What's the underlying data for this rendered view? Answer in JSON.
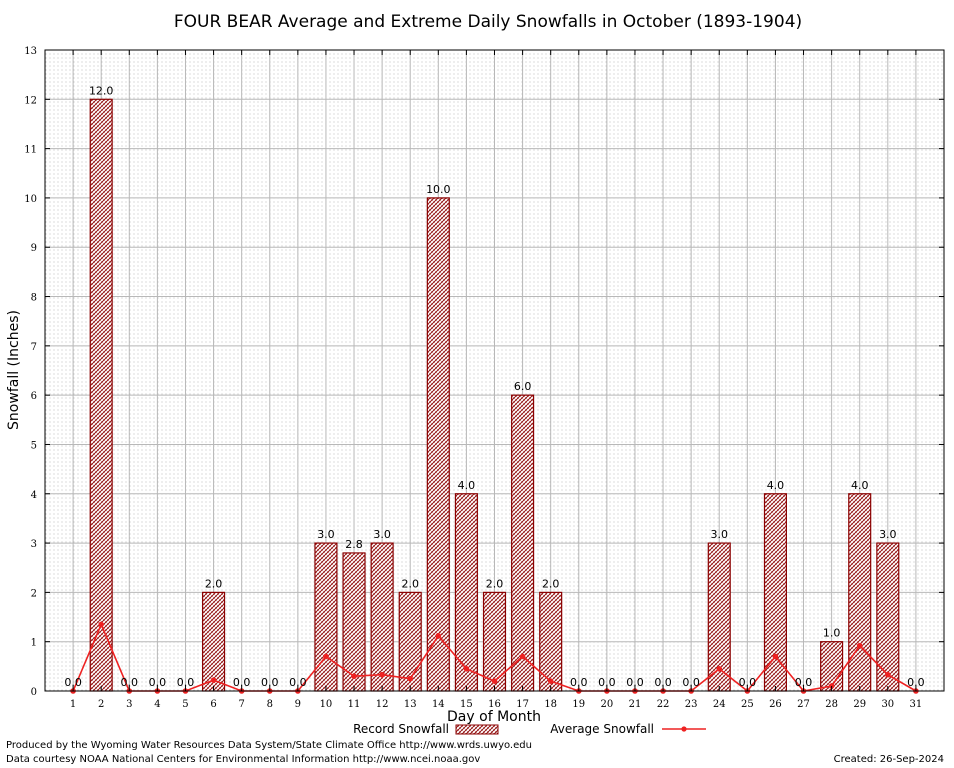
{
  "chart_data": {
    "type": "bar",
    "title": "FOUR BEAR Average and Extreme Daily Snowfalls in October (1893-1904)",
    "xlabel": "Day of Month",
    "ylabel": "Snowfall (Inches)",
    "ylim": [
      0,
      13
    ],
    "yticks": [
      "0",
      "1",
      "2",
      "3",
      "4",
      "5",
      "6",
      "7",
      "8",
      "9",
      "10",
      "11",
      "12",
      "13"
    ],
    "grid": true,
    "categories": [
      "1",
      "2",
      "3",
      "4",
      "5",
      "6",
      "7",
      "8",
      "9",
      "10",
      "11",
      "12",
      "13",
      "14",
      "15",
      "16",
      "17",
      "18",
      "19",
      "20",
      "21",
      "22",
      "23",
      "24",
      "25",
      "26",
      "27",
      "28",
      "29",
      "30",
      "31"
    ],
    "series": [
      {
        "name": "Record Snowfall",
        "kind": "bar",
        "color": "#8b0000",
        "values": [
          0,
          12,
          0,
          0,
          0,
          2,
          0,
          0,
          0,
          3,
          2.8,
          3,
          2,
          10,
          4,
          2,
          6,
          2,
          0,
          0,
          0,
          0,
          0,
          3,
          0,
          4,
          0,
          1,
          4,
          3,
          0
        ],
        "labels": [
          "0.0",
          "12.0",
          "0.0",
          "0.0",
          "0.0",
          "2.0",
          "0.0",
          "0.0",
          "0.0",
          "3.0",
          "2.8",
          "3.0",
          "2.0",
          "10.0",
          "4.0",
          "2.0",
          "6.0",
          "2.0",
          "0.0",
          "0.0",
          "0.0",
          "0.0",
          "0.0",
          "3.0",
          "0.0",
          "4.0",
          "0.0",
          "1.0",
          "4.0",
          "3.0",
          "0.0"
        ]
      },
      {
        "name": "Average Snowfall",
        "kind": "line",
        "color": "#ee2222",
        "values": [
          0,
          1.35,
          0,
          0,
          0,
          0.22,
          0,
          0,
          0,
          0.7,
          0.3,
          0.33,
          0.25,
          1.12,
          0.45,
          0.2,
          0.7,
          0.2,
          0,
          0,
          0,
          0,
          0,
          0.45,
          0,
          0.7,
          0,
          0.1,
          0.92,
          0.33,
          0
        ]
      }
    ],
    "legend": {
      "placement": "bottom-center",
      "record_label": "Record Snowfall",
      "average_label": "Average Snowfall"
    }
  },
  "footer": {
    "produced_by": "Produced by the Wyoming Water Resources Data System/State Climate Office http://www.wrds.uwyo.edu",
    "courtesy": "Data courtesy NOAA National Centers for Environmental Information http://www.ncei.noaa.gov",
    "created": "Created:  26-Sep-2024"
  }
}
